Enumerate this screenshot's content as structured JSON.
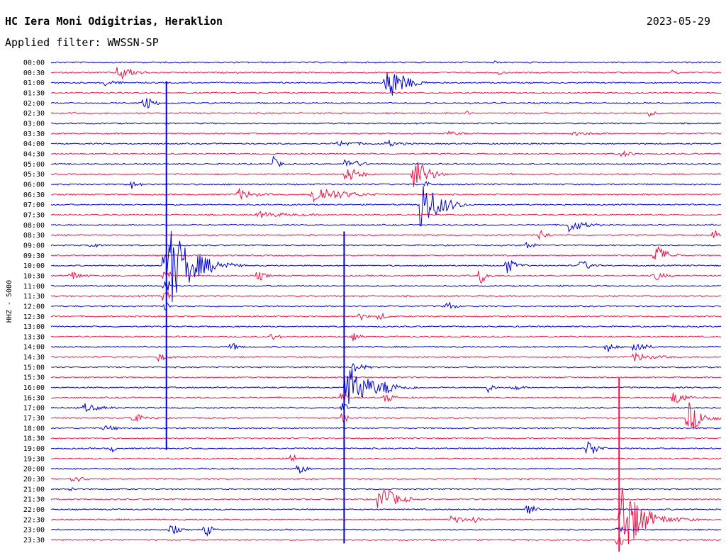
{
  "header": {
    "station": "HC Iera Moni Odigitrias, Heraklion",
    "date": "2023-05-29",
    "filter": "Applied filter: WWSSN-SP"
  },
  "chart_data": {
    "type": "line",
    "title": "HC Iera Moni Odigitrias, Heraklion",
    "date": "2023-05-29",
    "filter": "WWSSN-SP",
    "ylabel": "HHZ - 5000",
    "row_interval_minutes": 30,
    "rows_per_trace": 48,
    "trace_labels": [
      "00:00",
      "00:30",
      "01:00",
      "01:30",
      "02:00",
      "02:30",
      "03:00",
      "03:30",
      "04:00",
      "04:30",
      "05:00",
      "05:30",
      "06:00",
      "06:30",
      "07:00",
      "07:30",
      "08:00",
      "08:30",
      "09:00",
      "09:30",
      "10:00",
      "10:30",
      "11:00",
      "11:30",
      "12:00",
      "12:30",
      "13:00",
      "13:30",
      "14:00",
      "14:30",
      "15:00",
      "15:30",
      "16:00",
      "16:30",
      "17:00",
      "17:30",
      "18:00",
      "18:30",
      "19:00",
      "19:30",
      "20:00",
      "20:30",
      "21:00",
      "21:30",
      "22:00",
      "22:30",
      "23:00",
      "23:30"
    ],
    "colors": [
      "#0000cc",
      "#ee1144"
    ],
    "events": [
      {
        "row": 1,
        "t": 0.1,
        "amp": 14,
        "dur": 0.045
      },
      {
        "row": 0,
        "t": 0.66,
        "amp": 3,
        "dur": 0.01
      },
      {
        "row": 1,
        "t": 0.67,
        "amp": 4,
        "dur": 0.01
      },
      {
        "row": 1,
        "t": 0.93,
        "amp": 5,
        "dur": 0.01
      },
      {
        "row": 2,
        "t": 0.08,
        "amp": 6,
        "dur": 0.03
      },
      {
        "row": 2,
        "t": 0.5,
        "amp": 30,
        "dur": 0.06
      },
      {
        "row": 4,
        "t": 0.14,
        "amp": 12,
        "dur": 0.025
      },
      {
        "row": 5,
        "t": 0.62,
        "amp": 4,
        "dur": 0.01
      },
      {
        "row": 5,
        "t": 0.89,
        "amp": 5,
        "dur": 0.02
      },
      {
        "row": 7,
        "t": 0.59,
        "amp": 3,
        "dur": 0.05
      },
      {
        "row": 7,
        "t": 0.78,
        "amp": 3,
        "dur": 0.06
      },
      {
        "row": 8,
        "t": 0.43,
        "amp": 4,
        "dur": 0.06
      },
      {
        "row": 8,
        "t": 0.5,
        "amp": 5,
        "dur": 0.04
      },
      {
        "row": 9,
        "t": 0.85,
        "amp": 6,
        "dur": 0.03
      },
      {
        "row": 10,
        "t": 0.33,
        "amp": 12,
        "dur": 0.02
      },
      {
        "row": 10,
        "t": 0.44,
        "amp": 10,
        "dur": 0.04
      },
      {
        "row": 11,
        "t": 0.44,
        "amp": 14,
        "dur": 0.04
      },
      {
        "row": 11,
        "t": 0.54,
        "amp": 28,
        "dur": 0.05
      },
      {
        "row": 12,
        "t": 0.12,
        "amp": 6,
        "dur": 0.02
      },
      {
        "row": 12,
        "t": 0.56,
        "amp": 6,
        "dur": 0.01
      },
      {
        "row": 13,
        "t": 0.28,
        "amp": 8,
        "dur": 0.05
      },
      {
        "row": 13,
        "t": 0.39,
        "amp": 14,
        "dur": 0.1
      },
      {
        "row": 14,
        "t": 0.55,
        "amp": 40,
        "dur": 0.07
      },
      {
        "row": 15,
        "t": 0.31,
        "amp": 4,
        "dur": 0.1
      },
      {
        "row": 16,
        "t": 0.77,
        "amp": 12,
        "dur": 0.05
      },
      {
        "row": 17,
        "t": 0.73,
        "amp": 10,
        "dur": 0.02
      },
      {
        "row": 17,
        "t": 0.99,
        "amp": 8,
        "dur": 0.02
      },
      {
        "row": 18,
        "t": 0.06,
        "amp": 6,
        "dur": 0.02
      },
      {
        "row": 18,
        "t": 0.71,
        "amp": 8,
        "dur": 0.02
      },
      {
        "row": 19,
        "t": 0.9,
        "amp": 18,
        "dur": 0.04
      },
      {
        "row": 20,
        "t": 0.17,
        "amp": 30,
        "dur": 0.1
      },
      {
        "row": 20,
        "t": 0.68,
        "amp": 12,
        "dur": 0.03
      },
      {
        "row": 20,
        "t": 0.79,
        "amp": 10,
        "dur": 0.03
      },
      {
        "row": 21,
        "t": 0.03,
        "amp": 8,
        "dur": 0.03
      },
      {
        "row": 21,
        "t": 0.31,
        "amp": 8,
        "dur": 0.02
      },
      {
        "row": 21,
        "t": 0.64,
        "amp": 14,
        "dur": 0.02
      },
      {
        "row": 21,
        "t": 0.9,
        "amp": 8,
        "dur": 0.03
      },
      {
        "row": 24,
        "t": 0.59,
        "amp": 10,
        "dur": 0.02
      },
      {
        "row": 25,
        "t": 0.46,
        "amp": 6,
        "dur": 0.02
      },
      {
        "row": 25,
        "t": 0.49,
        "amp": 6,
        "dur": 0.02
      },
      {
        "row": 27,
        "t": 0.33,
        "amp": 6,
        "dur": 0.02
      },
      {
        "row": 27,
        "t": 0.45,
        "amp": 6,
        "dur": 0.02
      },
      {
        "row": 28,
        "t": 0.27,
        "amp": 6,
        "dur": 0.02
      },
      {
        "row": 28,
        "t": 0.83,
        "amp": 8,
        "dur": 0.02
      },
      {
        "row": 28,
        "t": 0.87,
        "amp": 12,
        "dur": 0.03
      },
      {
        "row": 29,
        "t": 0.16,
        "amp": 6,
        "dur": 0.03
      },
      {
        "row": 29,
        "t": 0.87,
        "amp": 6,
        "dur": 0.06
      },
      {
        "row": 30,
        "t": 0.45,
        "amp": 10,
        "dur": 0.03
      },
      {
        "row": 32,
        "t": 0.5,
        "amp": 8,
        "dur": 0.02
      },
      {
        "row": 32,
        "t": 0.65,
        "amp": 8,
        "dur": 0.02
      },
      {
        "row": 32,
        "t": 0.69,
        "amp": 6,
        "dur": 0.02
      },
      {
        "row": 33,
        "t": 0.5,
        "amp": 10,
        "dur": 0.02
      },
      {
        "row": 33,
        "t": 0.93,
        "amp": 14,
        "dur": 0.03
      },
      {
        "row": 34,
        "t": 0.05,
        "amp": 6,
        "dur": 0.05
      },
      {
        "row": 35,
        "t": 0.12,
        "amp": 8,
        "dur": 0.04
      },
      {
        "row": 35,
        "t": 0.95,
        "amp": 24,
        "dur": 0.05
      },
      {
        "row": 36,
        "t": 0.08,
        "amp": 4,
        "dur": 0.04
      },
      {
        "row": 38,
        "t": 0.09,
        "amp": 8,
        "dur": 0.01
      },
      {
        "row": 38,
        "t": 0.8,
        "amp": 16,
        "dur": 0.03
      },
      {
        "row": 39,
        "t": 0.36,
        "amp": 8,
        "dur": 0.02
      },
      {
        "row": 40,
        "t": 0.37,
        "amp": 10,
        "dur": 0.02
      },
      {
        "row": 41,
        "t": 0.03,
        "amp": 6,
        "dur": 0.04
      },
      {
        "row": 42,
        "t": 0.03,
        "amp": 4,
        "dur": 0.01
      },
      {
        "row": 43,
        "t": 0.49,
        "amp": 26,
        "dur": 0.05
      },
      {
        "row": 44,
        "t": 0.71,
        "amp": 14,
        "dur": 0.02
      },
      {
        "row": 45,
        "t": 0.6,
        "amp": 12,
        "dur": 0.02
      },
      {
        "row": 45,
        "t": 0.63,
        "amp": 8,
        "dur": 0.02
      },
      {
        "row": 45,
        "t": 0.85,
        "amp": 30,
        "dur": 0.05
      },
      {
        "row": 46,
        "t": 0.18,
        "amp": 10,
        "dur": 0.02
      },
      {
        "row": 46,
        "t": 0.23,
        "amp": 12,
        "dur": 0.02
      }
    ],
    "big_events": [
      {
        "row": 20,
        "t": 0.172,
        "peak": 260,
        "coda_rows": 4
      },
      {
        "row": 32,
        "t": 0.437,
        "peak": 220,
        "coda_rows": 3
      },
      {
        "row": 45,
        "t": 0.847,
        "peak": 200,
        "coda_rows": 2
      }
    ]
  }
}
